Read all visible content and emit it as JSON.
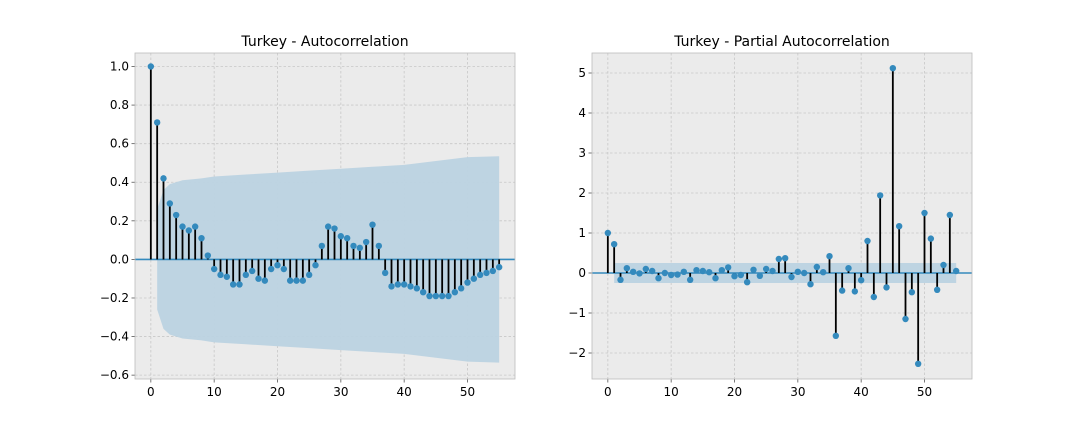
{
  "colors": {
    "background": "#ebebeb",
    "marker": "#348abd",
    "stem": "#000000",
    "band": "#bcd3e1",
    "zero_line": "#348abd"
  },
  "chart_data": [
    {
      "type": "stem",
      "title": "Turkey - Autocorrelation",
      "xlabel": "",
      "ylabel": "",
      "xlim": [
        -2.5,
        57.5
      ],
      "ylim": [
        -0.62,
        1.07
      ],
      "xticks": [
        0,
        10,
        20,
        30,
        40,
        50
      ],
      "xtick_labels": [
        "0",
        "10",
        "20",
        "30",
        "40",
        "50"
      ],
      "yticks": [
        -0.6,
        -0.4,
        -0.2,
        0.0,
        0.2,
        0.4,
        0.6,
        0.8,
        1.0
      ],
      "ytick_labels": [
        "−0.6",
        "−0.4",
        "−0.2",
        "0.0",
        "0.2",
        "0.4",
        "0.6",
        "0.8",
        "1.0"
      ],
      "grid": true,
      "x": [
        0,
        1,
        2,
        3,
        4,
        5,
        6,
        7,
        8,
        9,
        10,
        11,
        12,
        13,
        14,
        15,
        16,
        17,
        18,
        19,
        20,
        21,
        22,
        23,
        24,
        25,
        26,
        27,
        28,
        29,
        30,
        31,
        32,
        33,
        34,
        35,
        36,
        37,
        38,
        39,
        40,
        41,
        42,
        43,
        44,
        45,
        46,
        47,
        48,
        49,
        50,
        51,
        52,
        53,
        54,
        55
      ],
      "values": [
        1.0,
        0.71,
        0.42,
        0.29,
        0.23,
        0.17,
        0.15,
        0.17,
        0.11,
        0.02,
        -0.05,
        -0.08,
        -0.09,
        -0.13,
        -0.13,
        -0.08,
        -0.06,
        -0.1,
        -0.11,
        -0.05,
        -0.03,
        -0.05,
        -0.11,
        -0.11,
        -0.11,
        -0.08,
        -0.03,
        0.07,
        0.17,
        0.16,
        0.12,
        0.11,
        0.07,
        0.06,
        0.09,
        0.18,
        0.07,
        -0.07,
        -0.14,
        -0.13,
        -0.13,
        -0.14,
        -0.15,
        -0.17,
        -0.19,
        -0.19,
        -0.19,
        -0.19,
        -0.17,
        -0.15,
        -0.12,
        -0.1,
        -0.08,
        -0.07,
        -0.06,
        -0.04
      ],
      "confidence_band": {
        "x": [
          1,
          2,
          3,
          5,
          8,
          10,
          15,
          20,
          25,
          30,
          35,
          40,
          45,
          50,
          55
        ],
        "upper": [
          0.26,
          0.36,
          0.39,
          0.41,
          0.42,
          0.43,
          0.44,
          0.45,
          0.46,
          0.47,
          0.48,
          0.49,
          0.51,
          0.53,
          0.535
        ],
        "lower": [
          -0.26,
          -0.36,
          -0.39,
          -0.41,
          -0.42,
          -0.43,
          -0.44,
          -0.45,
          -0.46,
          -0.47,
          -0.48,
          -0.49,
          -0.51,
          -0.53,
          -0.535
        ]
      }
    },
    {
      "type": "stem",
      "title": "Turkey - Partial Autocorrelation",
      "xlabel": "",
      "ylabel": "",
      "xlim": [
        -2.5,
        57.5
      ],
      "ylim": [
        -2.65,
        5.5
      ],
      "xticks": [
        0,
        10,
        20,
        30,
        40,
        50
      ],
      "xtick_labels": [
        "0",
        "10",
        "20",
        "30",
        "40",
        "50"
      ],
      "yticks": [
        -2,
        -1,
        0,
        1,
        2,
        3,
        4,
        5
      ],
      "ytick_labels": [
        "−2",
        "−1",
        "0",
        "1",
        "2",
        "3",
        "4",
        "5"
      ],
      "grid": true,
      "x": [
        0,
        1,
        2,
        3,
        4,
        5,
        6,
        7,
        8,
        9,
        10,
        11,
        12,
        13,
        14,
        15,
        16,
        17,
        18,
        19,
        20,
        21,
        22,
        23,
        24,
        25,
        26,
        27,
        28,
        29,
        30,
        31,
        32,
        33,
        34,
        35,
        36,
        37,
        38,
        39,
        40,
        41,
        42,
        43,
        44,
        45,
        46,
        47,
        48,
        49,
        50,
        51,
        52,
        53,
        54,
        55
      ],
      "values": [
        1.0,
        0.72,
        -0.17,
        0.12,
        0.03,
        -0.01,
        0.1,
        0.05,
        -0.13,
        0.0,
        -0.05,
        -0.04,
        0.03,
        -0.17,
        0.07,
        0.05,
        0.02,
        -0.13,
        0.07,
        0.14,
        -0.08,
        -0.05,
        -0.23,
        0.08,
        -0.07,
        0.1,
        0.05,
        0.35,
        0.37,
        -0.1,
        0.03,
        0.0,
        -0.28,
        0.15,
        0.02,
        0.42,
        -1.57,
        -0.44,
        0.12,
        -0.46,
        -0.18,
        0.8,
        -0.6,
        1.94,
        -0.36,
        5.12,
        1.17,
        -1.15,
        -0.48,
        -2.27,
        1.5,
        0.86,
        -0.42,
        0.2,
        1.45,
        0.05
      ],
      "confidence_band": {
        "x": [
          1,
          55
        ],
        "upper": [
          0.25,
          0.25
        ],
        "lower": [
          -0.25,
          -0.25
        ]
      }
    }
  ]
}
